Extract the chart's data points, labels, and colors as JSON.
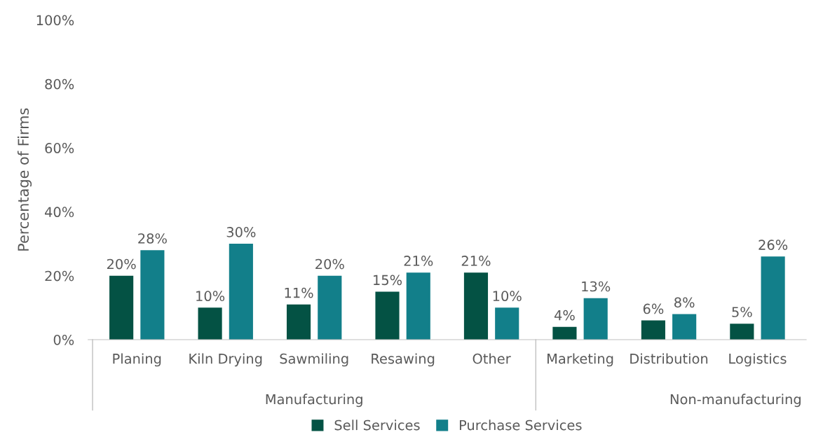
{
  "chart_data": {
    "type": "bar",
    "ylabel": "Percentage of Firms",
    "categories": [
      "Planing",
      "Kiln Drying",
      "Sawmiling",
      "Resawing",
      "Other",
      "Marketing",
      "Distribution",
      "Logistics"
    ],
    "series": [
      {
        "name": "Sell Services",
        "color": "#045244",
        "values": [
          20,
          10,
          11,
          15,
          21,
          4,
          6,
          5
        ],
        "value_labels": [
          "20%",
          "10%",
          "11%",
          "15%",
          "21%",
          "4%",
          "6%",
          "5%"
        ]
      },
      {
        "name": "Purchase Services",
        "color": "#127f8a",
        "values": [
          28,
          30,
          20,
          21,
          10,
          13,
          8,
          26
        ],
        "value_labels": [
          "28%",
          "30%",
          "20%",
          "21%",
          "10%",
          "13%",
          "8%",
          "26%"
        ]
      }
    ],
    "ylim": [
      0,
      100
    ],
    "yticks": [
      {
        "value": 0,
        "label": "0%"
      },
      {
        "value": 20,
        "label": "20%"
      },
      {
        "value": 40,
        "label": "40%"
      },
      {
        "value": 60,
        "label": "60%"
      },
      {
        "value": 80,
        "label": "80%"
      },
      {
        "value": 100,
        "label": "100%"
      }
    ],
    "annotations": [
      "Manufacturing",
      "Non-manufacturing"
    ],
    "grid": false,
    "legend": "bottom"
  }
}
